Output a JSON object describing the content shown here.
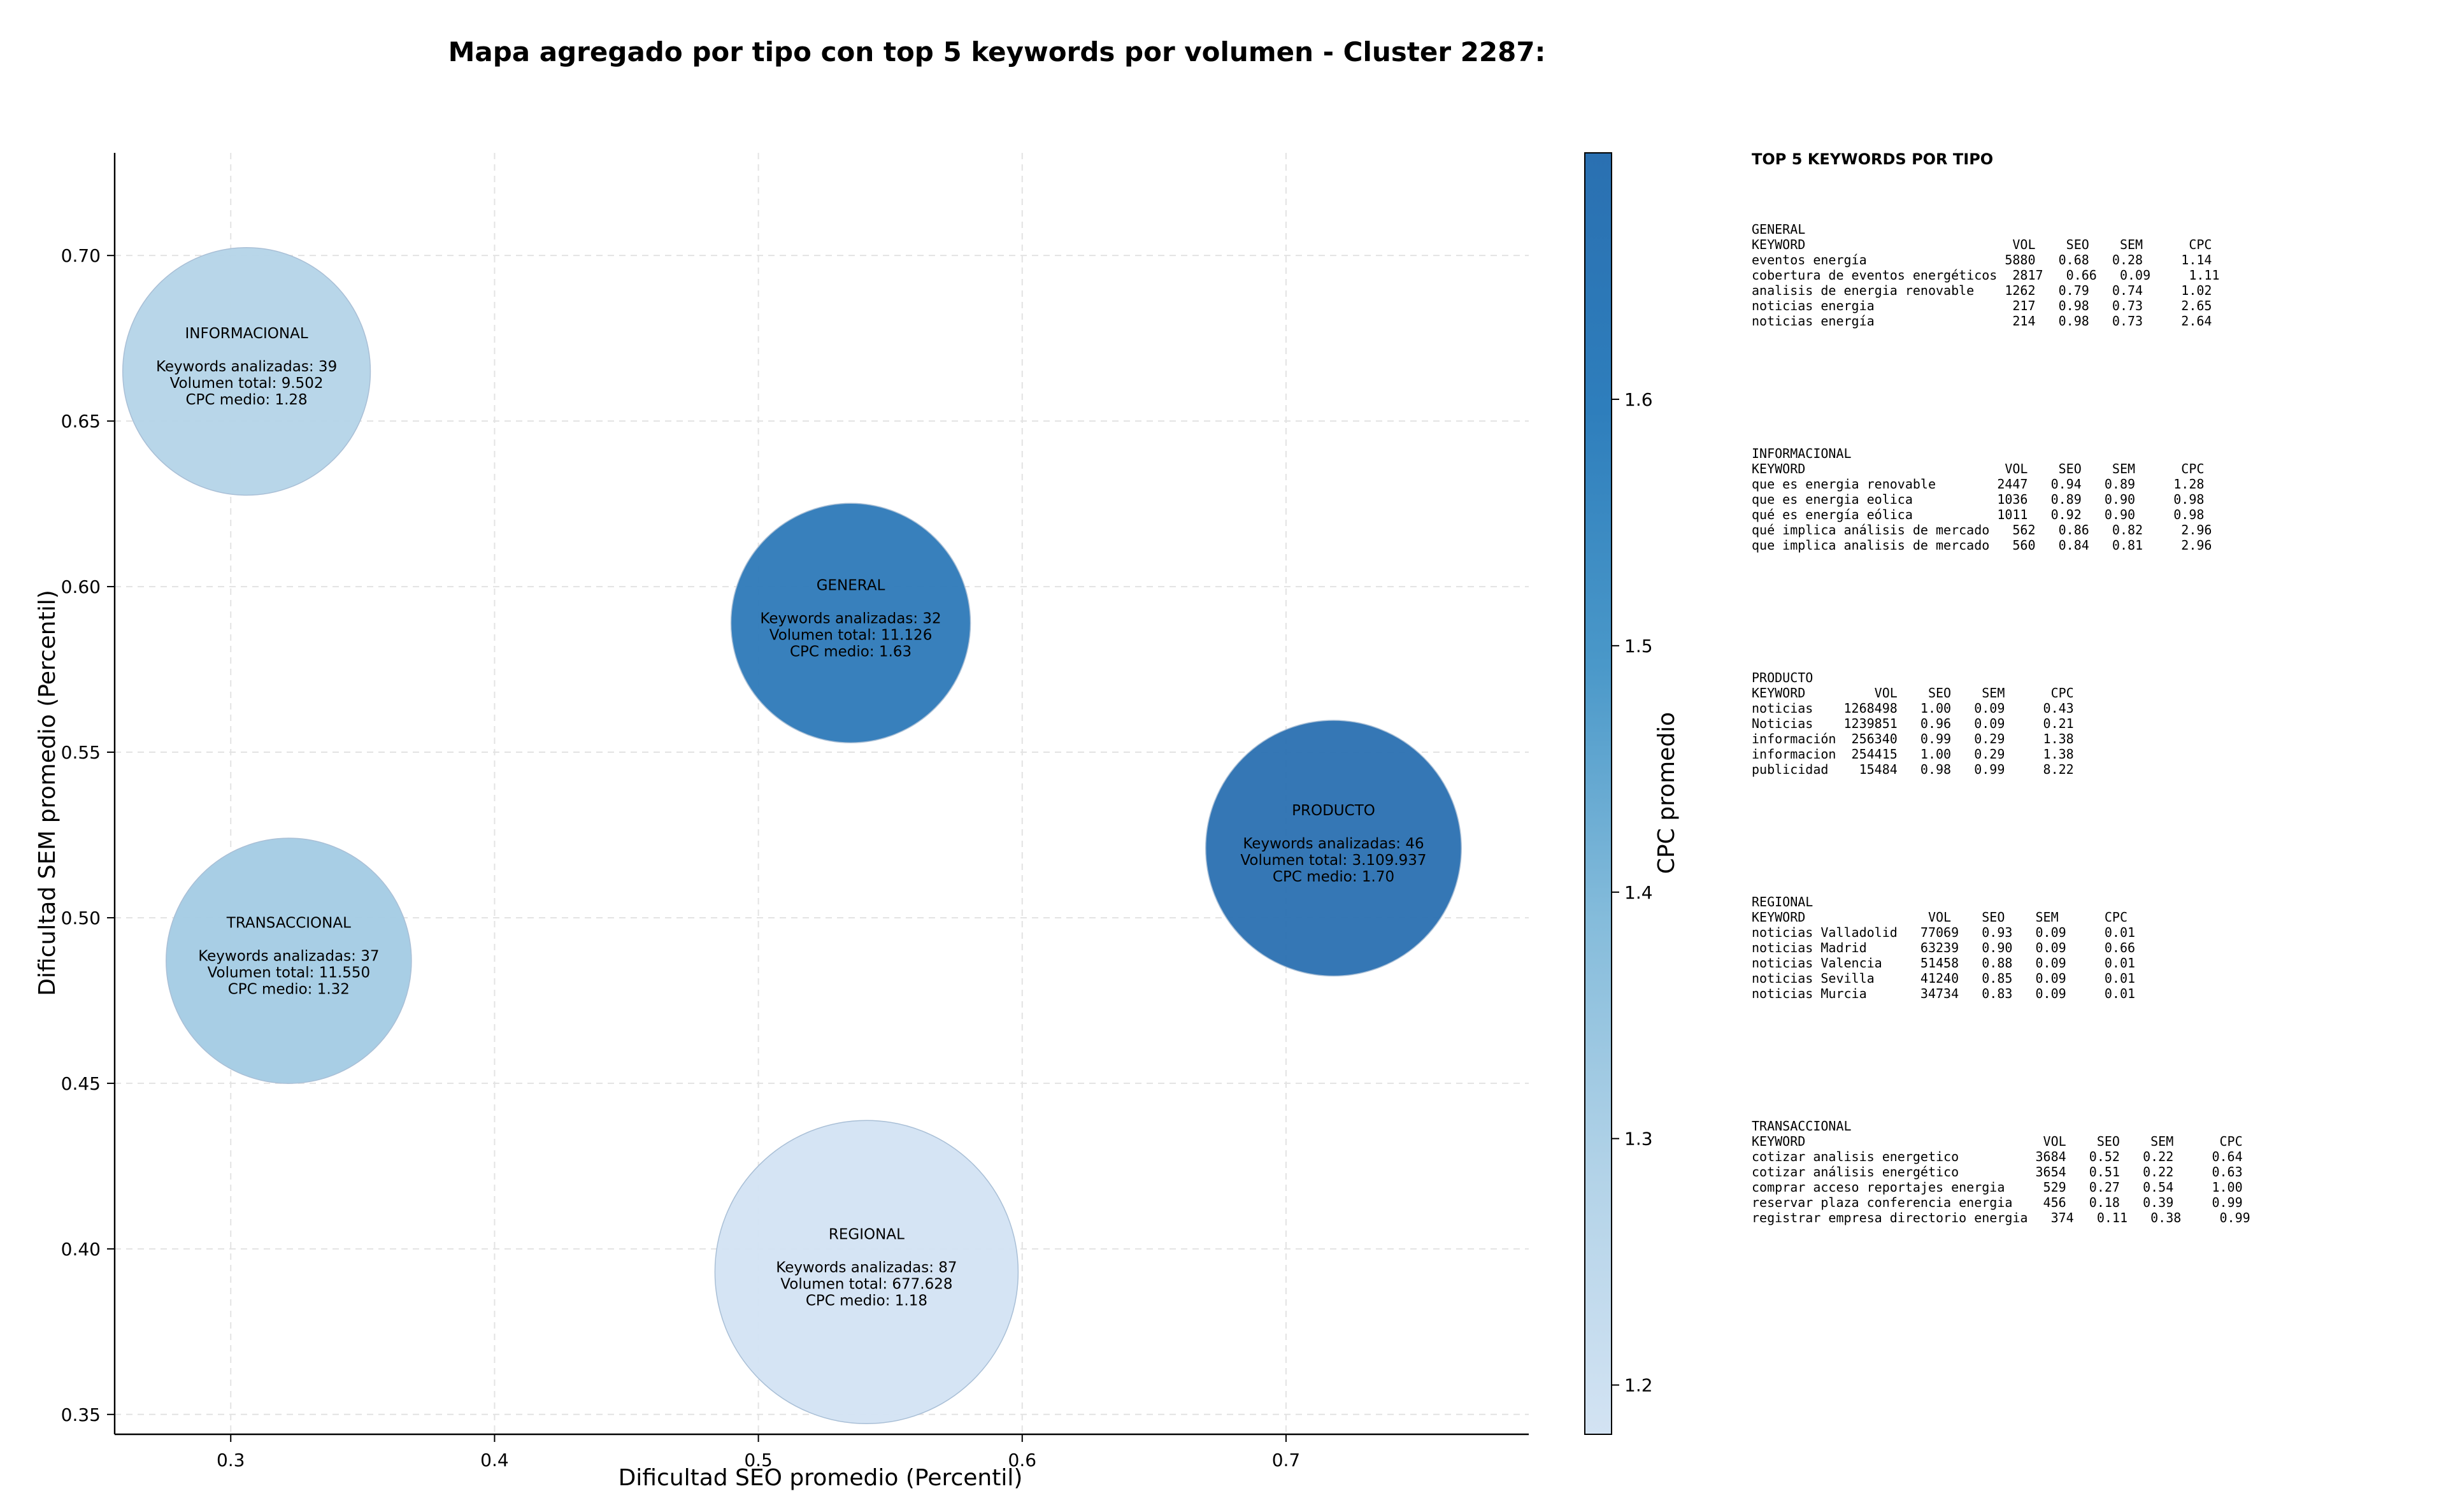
{
  "chart_data": {
    "type": "scatter",
    "title": "Mapa agregado por tipo con top 5 keywords por volumen - Cluster 2287:",
    "xlabel": "Dificultad SEO promedio (Percentil)",
    "ylabel": "Dificultad SEM promedio (Percentil)",
    "xlim": [
      0.256,
      0.792
    ],
    "ylim": [
      0.344,
      0.731
    ],
    "xticks": [
      "0.3",
      "0.4",
      "0.5",
      "0.6",
      "0.7"
    ],
    "yticks": [
      "0.35",
      "0.40",
      "0.45",
      "0.50",
      "0.55",
      "0.60",
      "0.65",
      "0.70"
    ],
    "grid": true,
    "colorbar": {
      "label": "CPC promedio",
      "min": 1.18,
      "max": 1.7,
      "ticks": [
        "1.2",
        "1.3",
        "1.4",
        "1.5",
        "1.6"
      ],
      "colormap": [
        "#d3e3f3",
        "#b3d3e8",
        "#85bcdb",
        "#4a98c9",
        "#2e7ebc",
        "#2a70b1"
      ]
    },
    "points": [
      {
        "name": "INFORMACIONAL",
        "x": 0.306,
        "y": 0.665,
        "keywords": 39,
        "volumen": 9502,
        "cpc": 1.28,
        "lines": [
          "Keywords analizadas: 39",
          "Volumen total: 9.502",
          "CPC medio: 1.28"
        ]
      },
      {
        "name": "GENERAL",
        "x": 0.535,
        "y": 0.589,
        "keywords": 32,
        "volumen": 11126,
        "cpc": 1.63,
        "lines": [
          "Keywords analizadas: 32",
          "Volumen total: 11.126",
          "CPC medio: 1.63"
        ]
      },
      {
        "name": "PRODUCTO",
        "x": 0.718,
        "y": 0.521,
        "keywords": 46,
        "volumen": 3109937,
        "cpc": 1.7,
        "lines": [
          "Keywords analizadas: 46",
          "Volumen total: 3.109.937",
          "CPC medio: 1.70"
        ]
      },
      {
        "name": "TRANSACCIONAL",
        "x": 0.322,
        "y": 0.487,
        "keywords": 37,
        "volumen": 11550,
        "cpc": 1.32,
        "lines": [
          "Keywords analizadas: 37",
          "Volumen total: 11.550",
          "CPC medio: 1.32"
        ]
      },
      {
        "name": "REGIONAL",
        "x": 0.541,
        "y": 0.393,
        "keywords": 87,
        "volumen": 677628,
        "cpc": 1.18,
        "lines": [
          "Keywords analizadas: 87",
          "Volumen total: 677.628",
          "CPC medio: 1.18"
        ]
      }
    ]
  },
  "tables": {
    "title": "TOP 5 KEYWORDS POR TIPO",
    "blocks": [
      {
        "name": "GENERAL",
        "lines": [
          "GENERAL",
          "KEYWORD                           VOL    SEO    SEM      CPC",
          "eventos energía                  5880   0.68   0.28     1.14",
          "cobertura de eventos energéticos  2817   0.66   0.09     1.11",
          "analisis de energia renovable    1262   0.79   0.74     1.02",
          "noticias energia                  217   0.98   0.73     2.65",
          "noticias energía                  214   0.98   0.73     2.64"
        ]
      },
      {
        "name": "INFORMACIONAL",
        "lines": [
          "INFORMACIONAL",
          "KEYWORD                          VOL    SEO    SEM      CPC",
          "que es energia renovable        2447   0.94   0.89     1.28",
          "que es energia eolica           1036   0.89   0.90     0.98",
          "qué es energía eólica           1011   0.92   0.90     0.98",
          "qué implica análisis de mercado   562   0.86   0.82     2.96",
          "que implica analisis de mercado   560   0.84   0.81     2.96"
        ]
      },
      {
        "name": "PRODUCTO",
        "lines": [
          "PRODUCTO",
          "KEYWORD         VOL    SEO    SEM      CPC",
          "noticias    1268498   1.00   0.09     0.43",
          "Noticias    1239851   0.96   0.09     0.21",
          "información  256340   0.99   0.29     1.38",
          "informacion  254415   1.00   0.29     1.38",
          "publicidad    15484   0.98   0.99     8.22"
        ]
      },
      {
        "name": "REGIONAL",
        "lines": [
          "REGIONAL",
          "KEYWORD                VOL    SEO    SEM      CPC",
          "noticias Valladolid   77069   0.93   0.09     0.01",
          "noticias Madrid       63239   0.90   0.09     0.66",
          "noticias Valencia     51458   0.88   0.09     0.01",
          "noticias Sevilla      41240   0.85   0.09     0.01",
          "noticias Murcia       34734   0.83   0.09     0.01"
        ]
      },
      {
        "name": "TRANSACCIONAL",
        "lines": [
          "TRANSACCIONAL",
          "KEYWORD                               VOL    SEO    SEM      CPC",
          "cotizar analisis energetico          3684   0.52   0.22     0.64",
          "cotizar análisis energético          3654   0.51   0.22     0.63",
          "comprar acceso reportajes energia     529   0.27   0.54     1.00",
          "reservar plaza conferencia energia    456   0.18   0.39     0.99",
          "registrar empresa directorio energia   374   0.11   0.38     0.99"
        ]
      }
    ]
  }
}
